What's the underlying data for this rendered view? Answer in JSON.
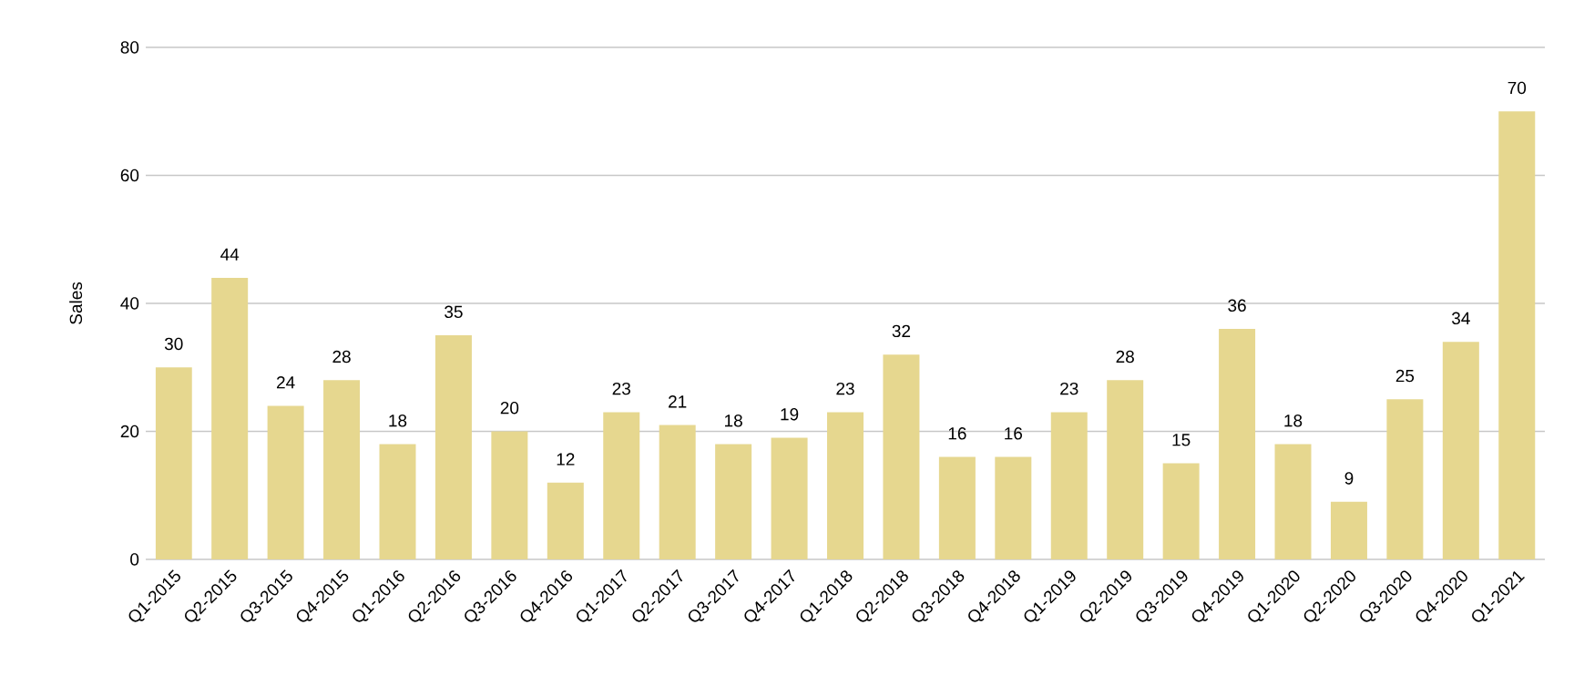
{
  "chart_data": {
    "type": "bar",
    "ylabel": "Sales",
    "categories": [
      "Q1-2015",
      "Q2-2015",
      "Q3-2015",
      "Q4-2015",
      "Q1-2016",
      "Q2-2016",
      "Q3-2016",
      "Q4-2016",
      "Q1-2017",
      "Q2-2017",
      "Q3-2017",
      "Q4-2017",
      "Q1-2018",
      "Q2-2018",
      "Q3-2018",
      "Q4-2018",
      "Q1-2019",
      "Q2-2019",
      "Q3-2019",
      "Q4-2019",
      "Q1-2020",
      "Q2-2020",
      "Q3-2020",
      "Q4-2020",
      "Q1-2021"
    ],
    "values": [
      30,
      44,
      24,
      28,
      18,
      35,
      20,
      12,
      23,
      21,
      18,
      19,
      23,
      32,
      16,
      16,
      23,
      28,
      15,
      36,
      18,
      9,
      25,
      34,
      70
    ],
    "color": "#e6d78f",
    "ylim": [
      0,
      80
    ],
    "yticks": [
      0,
      20,
      40,
      60,
      80
    ],
    "grid": "y",
    "data_labels": true
  }
}
